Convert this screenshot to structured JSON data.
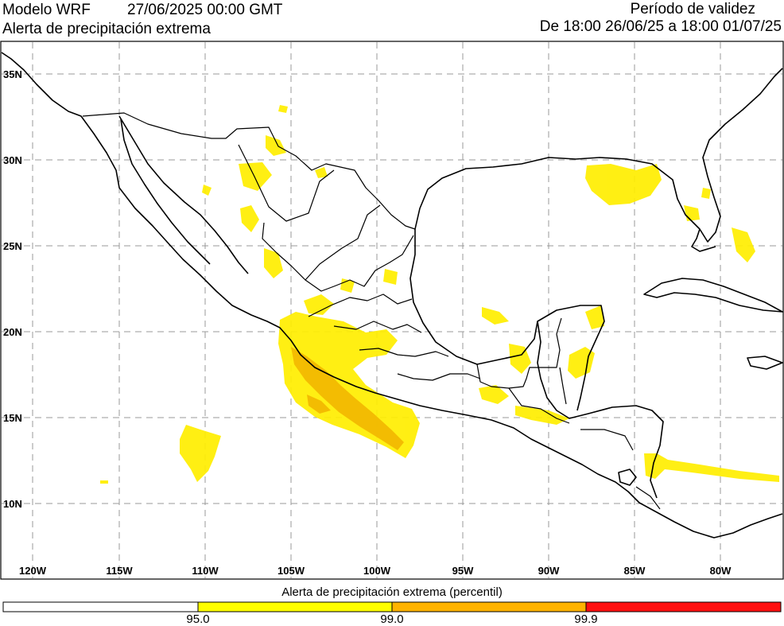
{
  "header": {
    "model": "Modelo WRF",
    "datetime": "27/06/2025 00:00 GMT",
    "product": "Alerta de precipitación extrema",
    "validity_title": "Período de validez",
    "validity_range": "De 18:00 26/06/25 a 18:00 01/07/25"
  },
  "map": {
    "lat_labels": [
      "35N",
      "30N",
      "25N",
      "20N",
      "15N",
      "10N"
    ],
    "lon_labels": [
      "120W",
      "115W",
      "110W",
      "105W",
      "100W",
      "95W",
      "90W",
      "85W",
      "80W"
    ],
    "colors": {
      "coast": "#000000",
      "grid": "#9a9a9a",
      "alert_95": "#ffee00",
      "alert_99": "#f2b400",
      "alert_999": "#ff1010"
    }
  },
  "colorbar": {
    "title": "Alerta de precipitación extrema (percentil)",
    "thresholds": [
      "95.0",
      "99.0",
      "99.9"
    ],
    "colors": [
      "#ffffff",
      "#ffff00",
      "#ffb300",
      "#ff1010"
    ]
  }
}
